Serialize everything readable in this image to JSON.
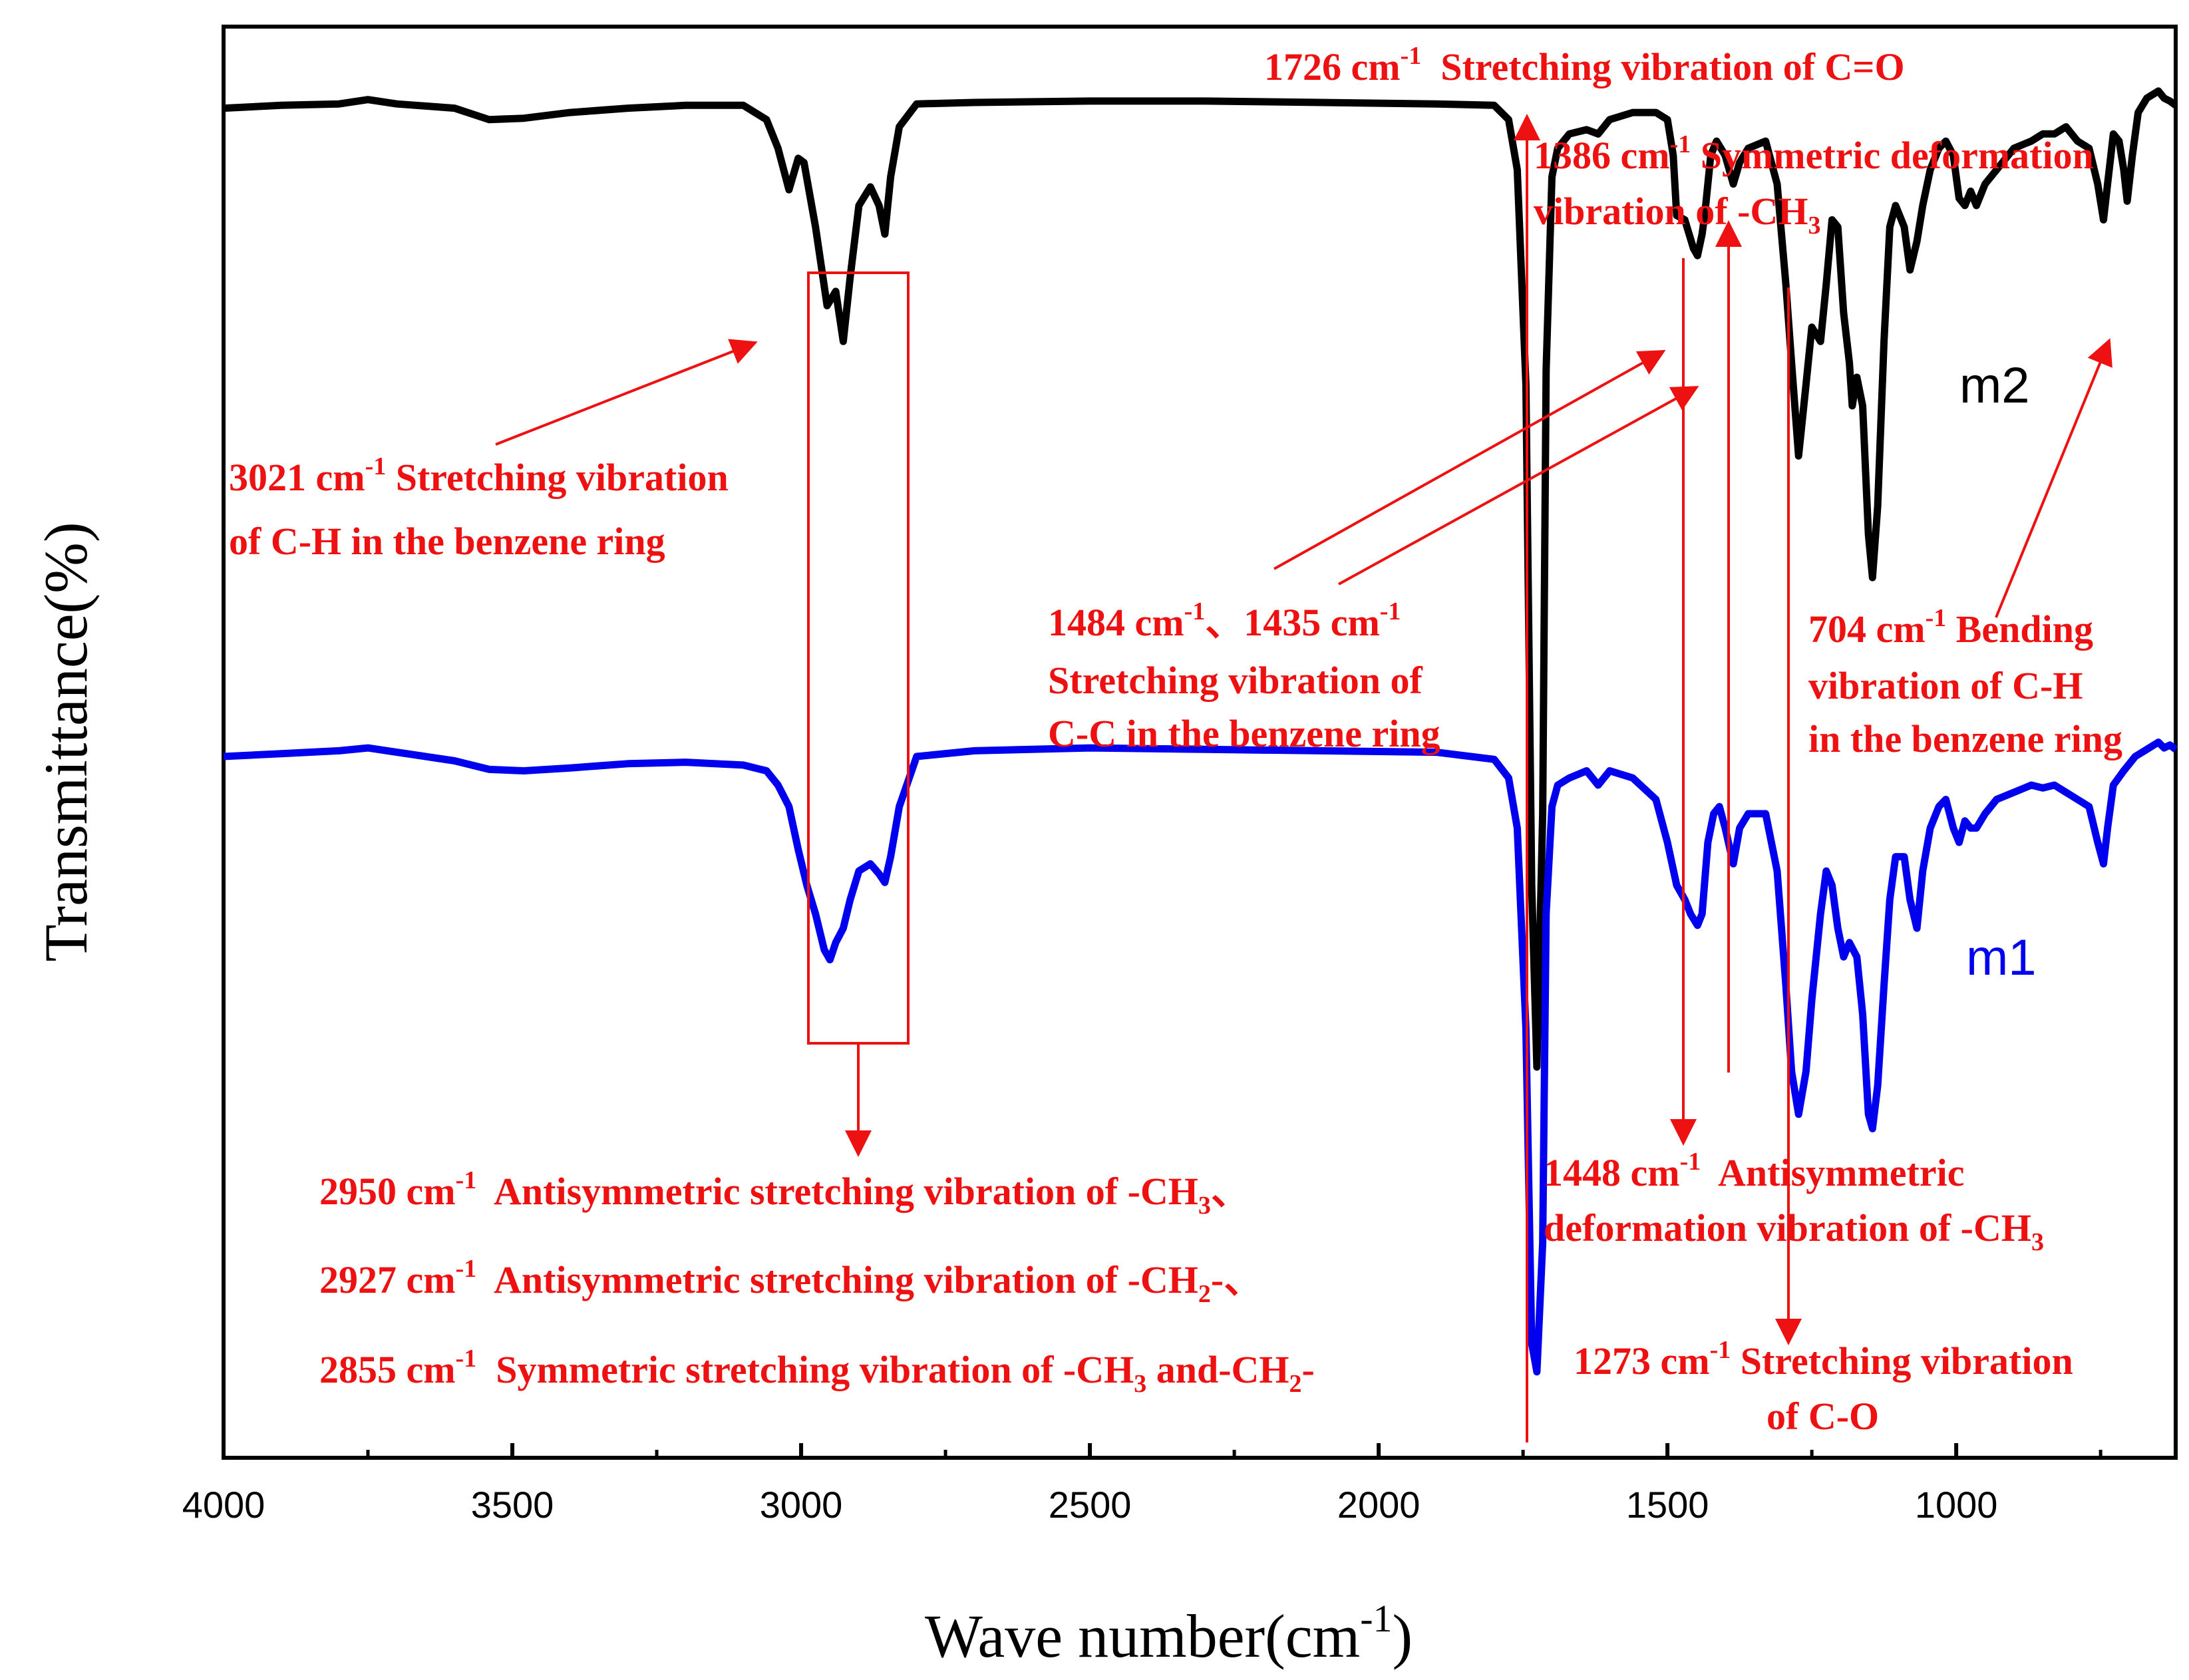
{
  "chart_data": {
    "type": "line",
    "title": "",
    "xlabel": "Wave number(cm",
    "xlabel_sup": "-1",
    "xlabel_tail": ")",
    "ylabel": "Transmittance(%)",
    "xlim": [
      4000,
      620
    ],
    "ylim": [
      0,
      100
    ],
    "xticks": [
      4000,
      3500,
      3000,
      2500,
      2000,
      1500,
      1000
    ],
    "xtick_labels": [
      "4000",
      "3500",
      "3000",
      "2500",
      "2000",
      "1500",
      "1000"
    ],
    "colors": {
      "annotation": "#ee1111",
      "axis": "#000000"
    },
    "series": [
      {
        "name": "m2",
        "color": "#000000",
        "points": [
          [
            4000,
            94.3
          ],
          [
            3900,
            94.5
          ],
          [
            3800,
            94.6
          ],
          [
            3750,
            94.9
          ],
          [
            3700,
            94.6
          ],
          [
            3600,
            94.3
          ],
          [
            3540,
            93.5
          ],
          [
            3480,
            93.6
          ],
          [
            3400,
            94.0
          ],
          [
            3300,
            94.3
          ],
          [
            3200,
            94.5
          ],
          [
            3100,
            94.5
          ],
          [
            3060,
            93.5
          ],
          [
            3040,
            91.5
          ],
          [
            3021,
            88.6
          ],
          [
            3005,
            90.8
          ],
          [
            2995,
            90.5
          ],
          [
            2975,
            86.0
          ],
          [
            2955,
            80.5
          ],
          [
            2940,
            81.5
          ],
          [
            2927,
            78.0
          ],
          [
            2915,
            82.5
          ],
          [
            2900,
            87.5
          ],
          [
            2880,
            88.8
          ],
          [
            2865,
            87.5
          ],
          [
            2855,
            85.5
          ],
          [
            2845,
            89.5
          ],
          [
            2830,
            93.0
          ],
          [
            2800,
            94.6
          ],
          [
            2700,
            94.7
          ],
          [
            2500,
            94.8
          ],
          [
            2300,
            94.8
          ],
          [
            2100,
            94.7
          ],
          [
            1900,
            94.6
          ],
          [
            1800,
            94.5
          ],
          [
            1775,
            93.5
          ],
          [
            1760,
            90.0
          ],
          [
            1745,
            75.0
          ],
          [
            1735,
            40.0
          ],
          [
            1726,
            27.3
          ],
          [
            1716,
            45.0
          ],
          [
            1710,
            76.0
          ],
          [
            1700,
            89.5
          ],
          [
            1690,
            91.5
          ],
          [
            1670,
            92.5
          ],
          [
            1640,
            92.8
          ],
          [
            1620,
            92.5
          ],
          [
            1600,
            93.5
          ],
          [
            1560,
            94.0
          ],
          [
            1520,
            94.0
          ],
          [
            1500,
            93.5
          ],
          [
            1490,
            91.0
          ],
          [
            1484,
            86.8
          ],
          [
            1470,
            86.5
          ],
          [
            1455,
            84.5
          ],
          [
            1448,
            84.0
          ],
          [
            1440,
            85.5
          ],
          [
            1435,
            87.0
          ],
          [
            1425,
            91.0
          ],
          [
            1415,
            92.0
          ],
          [
            1400,
            91.0
          ],
          [
            1386,
            89.0
          ],
          [
            1375,
            90.5
          ],
          [
            1360,
            91.5
          ],
          [
            1330,
            92.0
          ],
          [
            1310,
            89.0
          ],
          [
            1295,
            82.0
          ],
          [
            1285,
            76.5
          ],
          [
            1273,
            70.0
          ],
          [
            1260,
            75.0
          ],
          [
            1250,
            79.0
          ],
          [
            1235,
            78.0
          ],
          [
            1225,
            82.0
          ],
          [
            1215,
            86.5
          ],
          [
            1205,
            86.0
          ],
          [
            1195,
            80.0
          ],
          [
            1185,
            76.5
          ],
          [
            1180,
            73.5
          ],
          [
            1172,
            75.5
          ],
          [
            1162,
            73.5
          ],
          [
            1152,
            64.5
          ],
          [
            1145,
            61.5
          ],
          [
            1136,
            66.5
          ],
          [
            1125,
            78.0
          ],
          [
            1115,
            86.0
          ],
          [
            1105,
            87.5
          ],
          [
            1090,
            86.0
          ],
          [
            1080,
            83.0
          ],
          [
            1068,
            85.0
          ],
          [
            1058,
            87.5
          ],
          [
            1045,
            90.0
          ],
          [
            1030,
            91.5
          ],
          [
            1018,
            92.0
          ],
          [
            1005,
            91.0
          ],
          [
            995,
            88.0
          ],
          [
            985,
            87.5
          ],
          [
            975,
            88.5
          ],
          [
            965,
            87.5
          ],
          [
            950,
            89.0
          ],
          [
            930,
            90.0
          ],
          [
            900,
            91.5
          ],
          [
            870,
            92.0
          ],
          [
            850,
            92.5
          ],
          [
            830,
            92.5
          ],
          [
            810,
            93.0
          ],
          [
            790,
            92.0
          ],
          [
            770,
            91.5
          ],
          [
            755,
            89.0
          ],
          [
            745,
            86.5
          ],
          [
            738,
            89.0
          ],
          [
            728,
            92.5
          ],
          [
            718,
            92.0
          ],
          [
            710,
            90.0
          ],
          [
            704,
            87.8
          ],
          [
            695,
            91.0
          ],
          [
            685,
            94.0
          ],
          [
            670,
            95.0
          ],
          [
            650,
            95.5
          ],
          [
            640,
            95.0
          ],
          [
            630,
            94.8
          ],
          [
            620,
            94.5
          ]
        ]
      },
      {
        "name": "m1",
        "color": "#0000ee",
        "points": [
          [
            4000,
            49.0
          ],
          [
            3900,
            49.2
          ],
          [
            3800,
            49.4
          ],
          [
            3750,
            49.6
          ],
          [
            3700,
            49.3
          ],
          [
            3600,
            48.7
          ],
          [
            3540,
            48.1
          ],
          [
            3480,
            48.0
          ],
          [
            3400,
            48.2
          ],
          [
            3300,
            48.5
          ],
          [
            3200,
            48.6
          ],
          [
            3100,
            48.4
          ],
          [
            3060,
            48.0
          ],
          [
            3040,
            47.0
          ],
          [
            3021,
            45.5
          ],
          [
            3005,
            42.5
          ],
          [
            2990,
            40.0
          ],
          [
            2975,
            38.0
          ],
          [
            2960,
            35.5
          ],
          [
            2950,
            34.8
          ],
          [
            2940,
            36.0
          ],
          [
            2927,
            37.0
          ],
          [
            2915,
            39.0
          ],
          [
            2900,
            41.0
          ],
          [
            2880,
            41.5
          ],
          [
            2865,
            40.8
          ],
          [
            2855,
            40.2
          ],
          [
            2845,
            42.0
          ],
          [
            2830,
            45.5
          ],
          [
            2800,
            49.0
          ],
          [
            2700,
            49.4
          ],
          [
            2500,
            49.6
          ],
          [
            2300,
            49.5
          ],
          [
            2100,
            49.4
          ],
          [
            1900,
            49.3
          ],
          [
            1800,
            48.8
          ],
          [
            1775,
            47.5
          ],
          [
            1760,
            44.0
          ],
          [
            1745,
            30.0
          ],
          [
            1735,
            8.0
          ],
          [
            1726,
            6.0
          ],
          [
            1716,
            15.0
          ],
          [
            1710,
            38.0
          ],
          [
            1700,
            45.5
          ],
          [
            1690,
            47.0
          ],
          [
            1670,
            47.5
          ],
          [
            1640,
            48.0
          ],
          [
            1620,
            47.0
          ],
          [
            1600,
            48.0
          ],
          [
            1560,
            47.5
          ],
          [
            1520,
            46.0
          ],
          [
            1500,
            43.0
          ],
          [
            1484,
            40.0
          ],
          [
            1470,
            39.0
          ],
          [
            1460,
            38.0
          ],
          [
            1448,
            37.2
          ],
          [
            1440,
            38.0
          ],
          [
            1430,
            43.0
          ],
          [
            1420,
            45.0
          ],
          [
            1410,
            45.5
          ],
          [
            1400,
            44.0
          ],
          [
            1386,
            41.5
          ],
          [
            1375,
            44.0
          ],
          [
            1360,
            45.0
          ],
          [
            1330,
            45.0
          ],
          [
            1310,
            41.0
          ],
          [
            1295,
            33.0
          ],
          [
            1285,
            27.0
          ],
          [
            1273,
            24.0
          ],
          [
            1260,
            27.0
          ],
          [
            1250,
            32.0
          ],
          [
            1235,
            38.0
          ],
          [
            1225,
            41.0
          ],
          [
            1215,
            40.0
          ],
          [
            1205,
            37.0
          ],
          [
            1195,
            35.0
          ],
          [
            1185,
            36.0
          ],
          [
            1172,
            35.0
          ],
          [
            1162,
            31.0
          ],
          [
            1152,
            24.0
          ],
          [
            1145,
            23.0
          ],
          [
            1136,
            26.0
          ],
          [
            1125,
            33.0
          ],
          [
            1115,
            39.0
          ],
          [
            1105,
            42.0
          ],
          [
            1090,
            42.0
          ],
          [
            1080,
            39.0
          ],
          [
            1068,
            37.0
          ],
          [
            1058,
            41.0
          ],
          [
            1045,
            44.0
          ],
          [
            1030,
            45.5
          ],
          [
            1018,
            46.0
          ],
          [
            1005,
            44.0
          ],
          [
            995,
            43.0
          ],
          [
            985,
            44.5
          ],
          [
            975,
            44.0
          ],
          [
            965,
            44.0
          ],
          [
            950,
            45.0
          ],
          [
            930,
            46.0
          ],
          [
            900,
            46.5
          ],
          [
            870,
            47.0
          ],
          [
            850,
            46.8
          ],
          [
            830,
            47.0
          ],
          [
            810,
            46.5
          ],
          [
            790,
            46.0
          ],
          [
            770,
            45.5
          ],
          [
            755,
            43.0
          ],
          [
            745,
            41.5
          ],
          [
            738,
            44.0
          ],
          [
            728,
            47.0
          ],
          [
            710,
            48.0
          ],
          [
            690,
            49.0
          ],
          [
            670,
            49.5
          ],
          [
            650,
            50.0
          ],
          [
            640,
            49.6
          ],
          [
            630,
            49.8
          ],
          [
            620,
            49.5
          ]
        ]
      }
    ],
    "series_labels": {
      "m2": "m2",
      "m1": "m1"
    },
    "annotations": {
      "a1726": {
        "num": "1726 cm",
        "sup": "-1",
        "text": "  Stretching vibration of C=O"
      },
      "a1386_l1": {
        "num": "1386 cm",
        "sup": "-1",
        "text": " Symmetric deformation"
      },
      "a1386_l2": {
        "text": "vibration of -CH",
        "sub": "3"
      },
      "a3021_l1": {
        "num": "3021 cm",
        "sup": "-1",
        "text": " Stretching vibration"
      },
      "a3021_l2": {
        "text": "of C-H in the benzene ring"
      },
      "a1484_l1": {
        "num": "1484 cm",
        "sup": "-1",
        "mid": "、1435 cm",
        "sup2": "-1"
      },
      "a1484_l2": {
        "text": "Stretching vibration of"
      },
      "a1484_l3": {
        "text": "C-C in the benzene ring"
      },
      "a704_l1": {
        "num": "704 cm",
        "sup": "-1",
        "text": " Bending"
      },
      "a704_l2": {
        "text": "vibration of C-H"
      },
      "a704_l3": {
        "text": "in the benzene ring"
      },
      "a2950": {
        "num": "2950 cm",
        "sup": "-1",
        "text": "  Antisymmetric stretching vibration of -CH",
        "sub": "3",
        "tail": "、"
      },
      "a2927": {
        "num": "2927 cm",
        "sup": "-1",
        "text": "  Antisymmetric stretching vibration of -CH",
        "sub": "2",
        "tail": "-、"
      },
      "a2855": {
        "num": "2855 cm",
        "sup": "-1",
        "text": "  Symmetric stretching vibration of -CH",
        "sub": "3",
        "mid": " and-CH",
        "sub2": "2",
        "tail": "-"
      },
      "a1448_l1": {
        "num": "1448 cm",
        "sup": "-1",
        "text": "  Antisymmetric"
      },
      "a1448_l2": {
        "text": "deformation vibration of -CH",
        "sub": "3"
      },
      "a1273_l1": {
        "num": "1273 cm",
        "sup": "-1",
        "text": " Stretching vibration"
      },
      "a1273_l2": {
        "text": "of C-O"
      }
    }
  }
}
